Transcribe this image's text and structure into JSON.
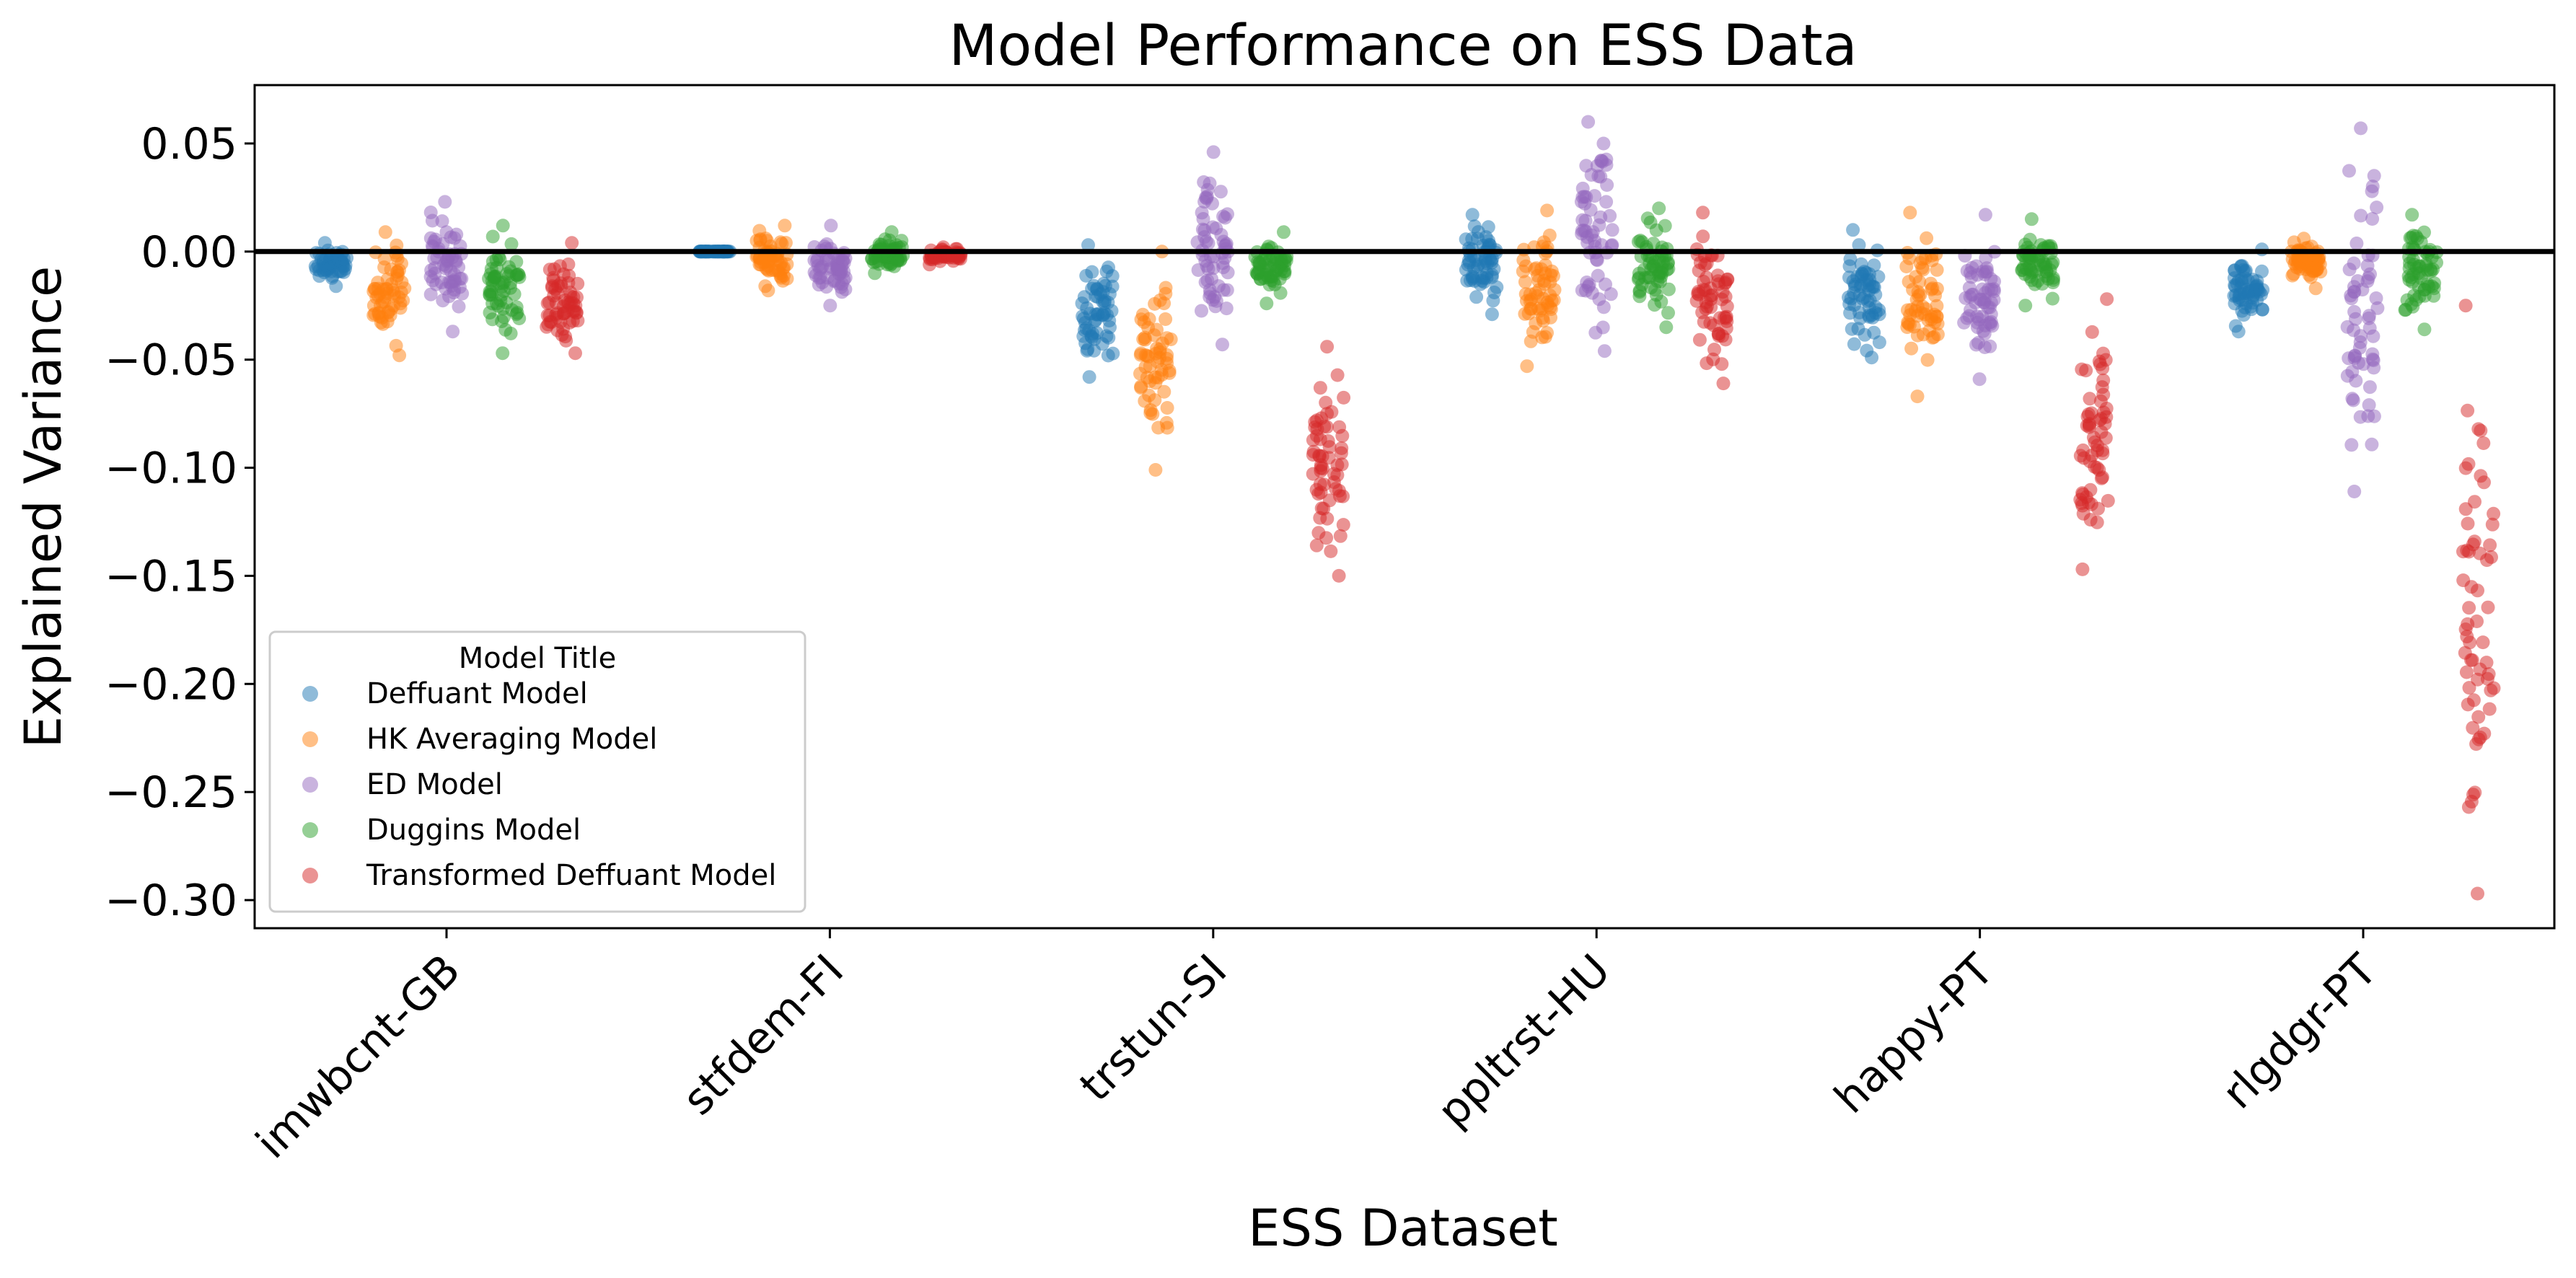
{
  "chart_data": {
    "type": "scatter",
    "subtype": "strip",
    "title": "Model Performance on ESS Data",
    "xlabel": "ESS Dataset",
    "ylabel": "Explained Variance",
    "ylim": [
      -0.313,
      0.077
    ],
    "yticks": [
      "0.05",
      "0.00",
      "−0.05",
      "−0.10",
      "−0.15",
      "−0.20",
      "−0.25",
      "−0.30"
    ],
    "ytick_values": [
      0.05,
      0.0,
      -0.05,
      -0.1,
      -0.15,
      -0.2,
      -0.25,
      -0.3
    ],
    "categories": [
      "imwbcnt-GB",
      "stfdem-FI",
      "trstun-SI",
      "ppltrst-HU",
      "happy-PT",
      "rlgdgr-PT"
    ],
    "reference_line": 0.0,
    "grid": false,
    "legend": {
      "title": "Model Title",
      "placement": "lower-left"
    },
    "series": [
      {
        "name": "Deffuant Model",
        "color": "#1f77b4",
        "ranges": [
          [
            -0.016,
            0.004
          ],
          [
            0.0,
            0.0
          ],
          [
            -0.058,
            0.003
          ],
          [
            -0.029,
            0.017
          ],
          [
            -0.049,
            0.01
          ],
          [
            -0.037,
            0.001
          ]
        ]
      },
      {
        "name": "HK Averaging Model",
        "color": "#ff7f0e",
        "ranges": [
          [
            -0.048,
            0.009
          ],
          [
            -0.018,
            0.012
          ],
          [
            -0.101,
            0.0
          ],
          [
            -0.053,
            0.019
          ],
          [
            -0.067,
            0.018
          ],
          [
            -0.017,
            0.006
          ]
        ]
      },
      {
        "name": "ED Model",
        "color": "#9467bd",
        "ranges": [
          [
            -0.037,
            0.023
          ],
          [
            -0.025,
            0.012
          ],
          [
            -0.043,
            0.046
          ],
          [
            -0.046,
            0.06
          ],
          [
            -0.059,
            0.017
          ],
          [
            -0.111,
            0.057
          ]
        ]
      },
      {
        "name": "Duggins Model",
        "color": "#2ca02c",
        "ranges": [
          [
            -0.047,
            0.012
          ],
          [
            -0.01,
            0.009
          ],
          [
            -0.024,
            0.009
          ],
          [
            -0.035,
            0.02
          ],
          [
            -0.025,
            0.015
          ],
          [
            -0.036,
            0.017
          ]
        ]
      },
      {
        "name": "Transformed Deffuant Model",
        "color": "#d62728",
        "ranges": [
          [
            -0.047,
            0.004
          ],
          [
            -0.006,
            0.002
          ],
          [
            -0.15,
            -0.044
          ],
          [
            -0.061,
            0.018
          ],
          [
            -0.147,
            -0.022
          ],
          [
            -0.297,
            -0.025
          ]
        ]
      }
    ]
  }
}
